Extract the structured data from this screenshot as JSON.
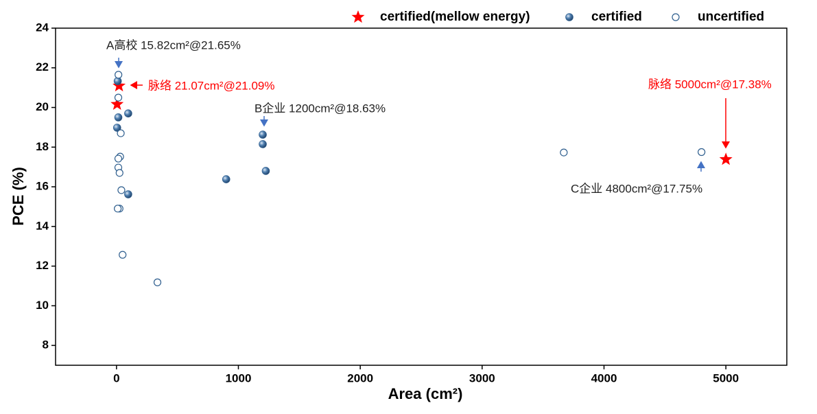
{
  "chart_data": {
    "type": "scatter",
    "xlabel": "Area (cm²)",
    "ylabel": "PCE (%)",
    "xlim": [
      -500,
      5500
    ],
    "xticks": [
      0,
      1000,
      2000,
      3000,
      4000,
      5000
    ],
    "ylim": [
      7,
      24
    ],
    "yticks": [
      8,
      10,
      12,
      14,
      16,
      18,
      20,
      22,
      24
    ],
    "series": [
      {
        "name": "certified(mellow energy)",
        "color": "#ff0000",
        "marker": "star",
        "x": [
          21.07,
          5,
          5000
        ],
        "values": [
          21.09,
          20.16,
          17.38
        ]
      },
      {
        "name": "certified",
        "color": "#2e5e8e",
        "marker": "ball",
        "x": [
          10,
          15,
          96,
          5,
          1200,
          1200,
          1225,
          900,
          96
        ],
        "values": [
          21.33,
          19.5,
          19.7,
          18.98,
          18.63,
          18.15,
          16.8,
          16.38,
          15.62
        ]
      },
      {
        "name": "uncertified",
        "color": "#2e5e8e",
        "marker": "open",
        "x": [
          15.82,
          15,
          35,
          30,
          15,
          15,
          25,
          40,
          25,
          10,
          50,
          336,
          3670,
          4800
        ],
        "values": [
          21.65,
          20.5,
          18.7,
          17.52,
          17.42,
          16.97,
          16.7,
          15.83,
          14.9,
          14.9,
          12.57,
          11.18,
          17.73,
          17.75
        ]
      }
    ],
    "annotations": [
      {
        "text": "A高校 15.82cm²@21.65%",
        "color": "#222222"
      },
      {
        "text": "脉络 21.07cm²@21.09%",
        "color": "#ff0000"
      },
      {
        "text": "B企业 1200cm²@18.63%",
        "color": "#222222"
      },
      {
        "text": "脉络 5000cm²@17.38%",
        "color": "#ff0000"
      },
      {
        "text": "C企业 4800cm²@17.75%",
        "color": "#222222"
      }
    ]
  }
}
